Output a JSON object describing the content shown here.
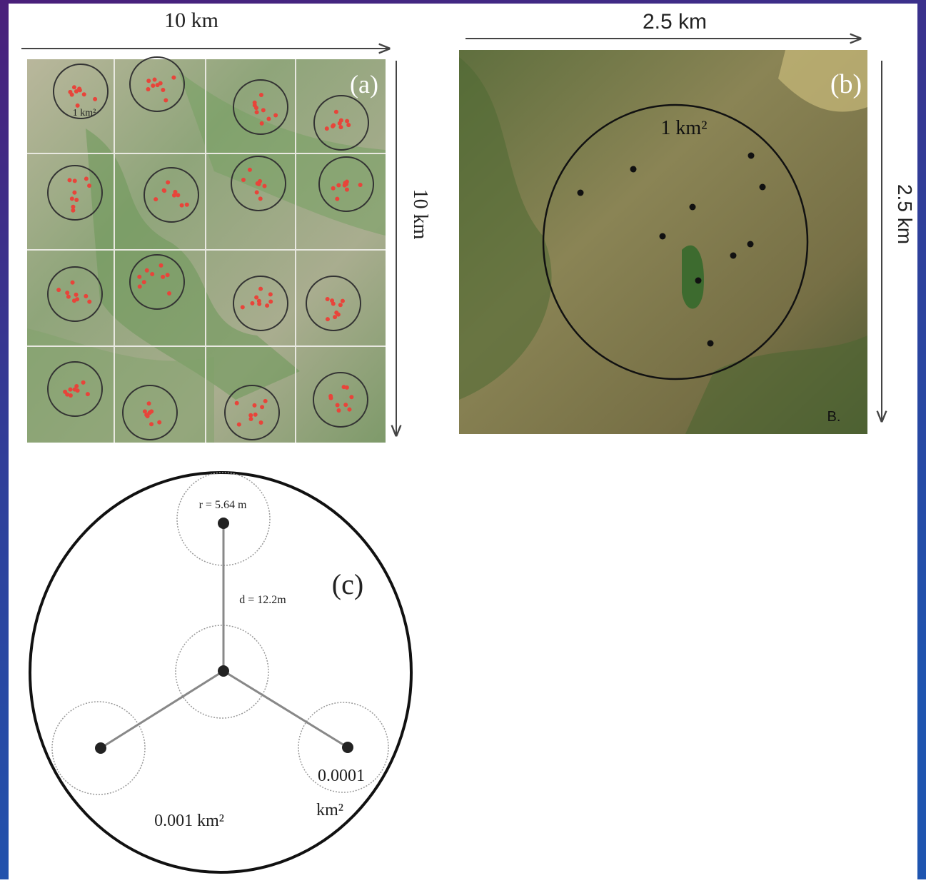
{
  "panel_a": {
    "width_label": "10 km",
    "height_label": "10 km",
    "tag": "(a)",
    "area_label": "1 km²"
  },
  "panel_b": {
    "width_label": "2.5 km",
    "height_label": "2.5 km",
    "tag": "(b)",
    "area_label": "1 km²",
    "corner_label": "B."
  },
  "panel_c": {
    "radius_label": "r = 5.64 m",
    "distance_label": "d = 12.2m",
    "tag": "(c)",
    "plot_area_label": "0.001 km²",
    "subplot_area_label": [
      "0.0001",
      "km²"
    ]
  }
}
